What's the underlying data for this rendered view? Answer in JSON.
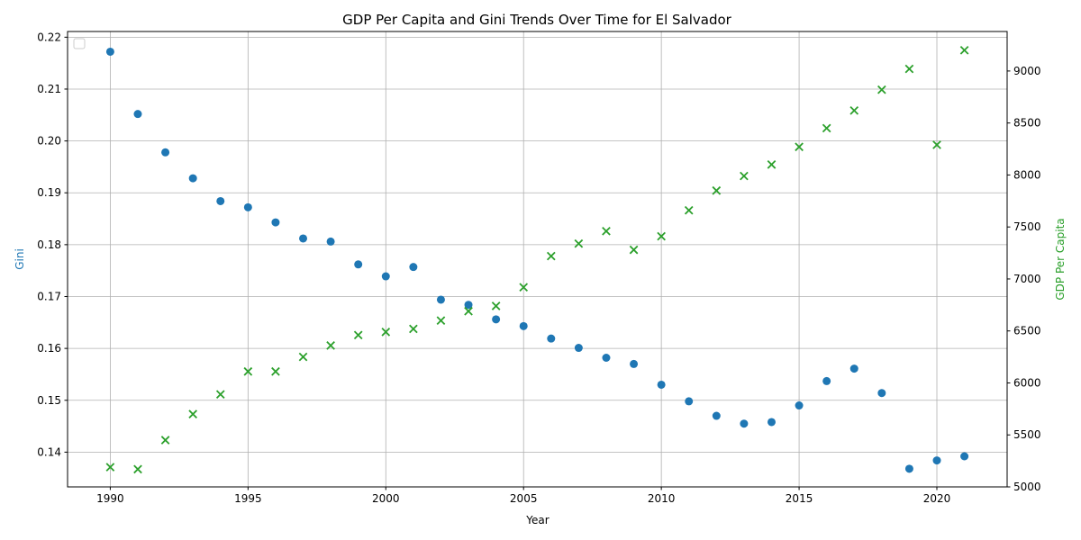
{
  "chart_data": {
    "type": "scatter",
    "title": "GDP Per Capita and Gini Trends Over Time for El Salvador",
    "xlabel": "Year",
    "ylabel_left": "Gini",
    "ylabel_right": "GDP Per Capita",
    "xlim": [
      1988.45,
      1992.55
    ],
    "x_ticks": [
      1990,
      1995,
      2000,
      2005,
      2010,
      2015,
      2020
    ],
    "y_left_lim": [
      0.1333,
      0.2211
    ],
    "y_left_ticks": [
      "0.14",
      "0.15",
      "0.16",
      "0.17",
      "0.18",
      "0.19",
      "0.20",
      "0.21",
      "0.22"
    ],
    "y_right_lim": [
      5000,
      9380
    ],
    "y_right_ticks": [
      "5000",
      "5500",
      "6000",
      "6500",
      "7000",
      "7500",
      "8000",
      "8500",
      "9000"
    ],
    "grid": true,
    "legend": "upper left (empty)",
    "x": [
      1990,
      1991,
      1992,
      1993,
      1994,
      1995,
      1996,
      1997,
      1998,
      1999,
      2000,
      2001,
      2002,
      2003,
      2004,
      2005,
      2006,
      2007,
      2008,
      2009,
      2010,
      2011,
      2012,
      2013,
      2014,
      2015,
      2016,
      2017,
      2018,
      2019,
      2020,
      2021
    ],
    "series": [
      {
        "name": "Gini",
        "axis": "left",
        "marker": "circle",
        "color": "#1f77b4",
        "values": [
          0.2172,
          0.2052,
          0.1978,
          0.1928,
          0.1884,
          0.1872,
          0.1843,
          0.1812,
          0.1806,
          0.1762,
          0.1739,
          0.1757,
          0.1694,
          0.1684,
          0.1656,
          0.1643,
          0.1619,
          0.1601,
          0.1582,
          0.157,
          0.153,
          0.1498,
          0.147,
          0.1455,
          0.1458,
          0.149,
          0.1537,
          0.1561,
          0.1514,
          0.1368,
          0.1384,
          0.1392
        ]
      },
      {
        "name": "GDP Per Capita",
        "axis": "right",
        "marker": "x",
        "color": "#2ca02c",
        "values": [
          5190,
          5170,
          5450,
          5700,
          5890,
          6110,
          6110,
          6250,
          6360,
          6460,
          6490,
          6520,
          6600,
          6690,
          6740,
          6920,
          7220,
          7340,
          7460,
          7280,
          7410,
          7660,
          7850,
          7990,
          8100,
          8270,
          8450,
          8620,
          8820,
          9020,
          8290,
          9200
        ]
      }
    ]
  }
}
